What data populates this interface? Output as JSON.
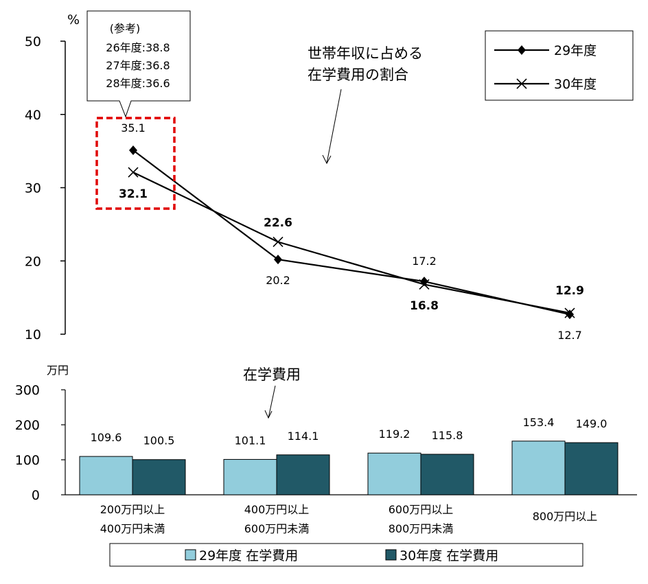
{
  "chart_data": [
    {
      "type": "line",
      "unit": "%",
      "ylim": [
        10,
        50
      ],
      "yticks": [
        "10",
        "20",
        "30",
        "40",
        "50"
      ],
      "x": [
        "200万円以上400万円未満",
        "400万円以上600万円未満",
        "600万円以上800万円未満",
        "800万円以上"
      ],
      "series": [
        {
          "name": "29年度",
          "values": [
            35.1,
            20.2,
            17.2,
            12.7
          ],
          "labels": [
            "35.1",
            "20.2",
            "17.2",
            "12.7"
          ],
          "marker": "diamond"
        },
        {
          "name": "30年度",
          "values": [
            32.1,
            22.6,
            16.8,
            12.9
          ],
          "labels": [
            "32.1",
            "22.6",
            "16.8",
            "12.9"
          ],
          "marker": "x"
        }
      ],
      "annotation": [
        "世帯年収に占める",
        "在学費用の割合"
      ],
      "callout": [
        "(参考)",
        "26年度:38.8",
        "27年度:36.8",
        "28年度:36.6"
      ],
      "legend_position": "top-right",
      "grid": false
    },
    {
      "type": "bar",
      "unit": "万円",
      "ylim": [
        0,
        300
      ],
      "yticks": [
        "0",
        "100",
        "200",
        "300"
      ],
      "categories": [
        [
          "200万円以上",
          "400万円未満"
        ],
        [
          "400万円以上",
          "600万円未満"
        ],
        [
          "600万円以上",
          "800万円未満"
        ],
        [
          "800万円以上"
        ]
      ],
      "series": [
        {
          "name": "29年度 在学費用",
          "values": [
            109.6,
            101.1,
            119.2,
            153.4
          ],
          "labels": [
            "109.6",
            "101.1",
            "119.2",
            "153.4"
          ],
          "color": "#92CDDC"
        },
        {
          "name": "30年度 在学費用",
          "values": [
            100.5,
            114.1,
            115.8,
            149.0
          ],
          "labels": [
            "100.5",
            "114.1",
            "115.8",
            "149.0"
          ],
          "color": "#215967"
        }
      ],
      "annotation": "在学費用",
      "legend_position": "bottom",
      "grid": false
    }
  ]
}
